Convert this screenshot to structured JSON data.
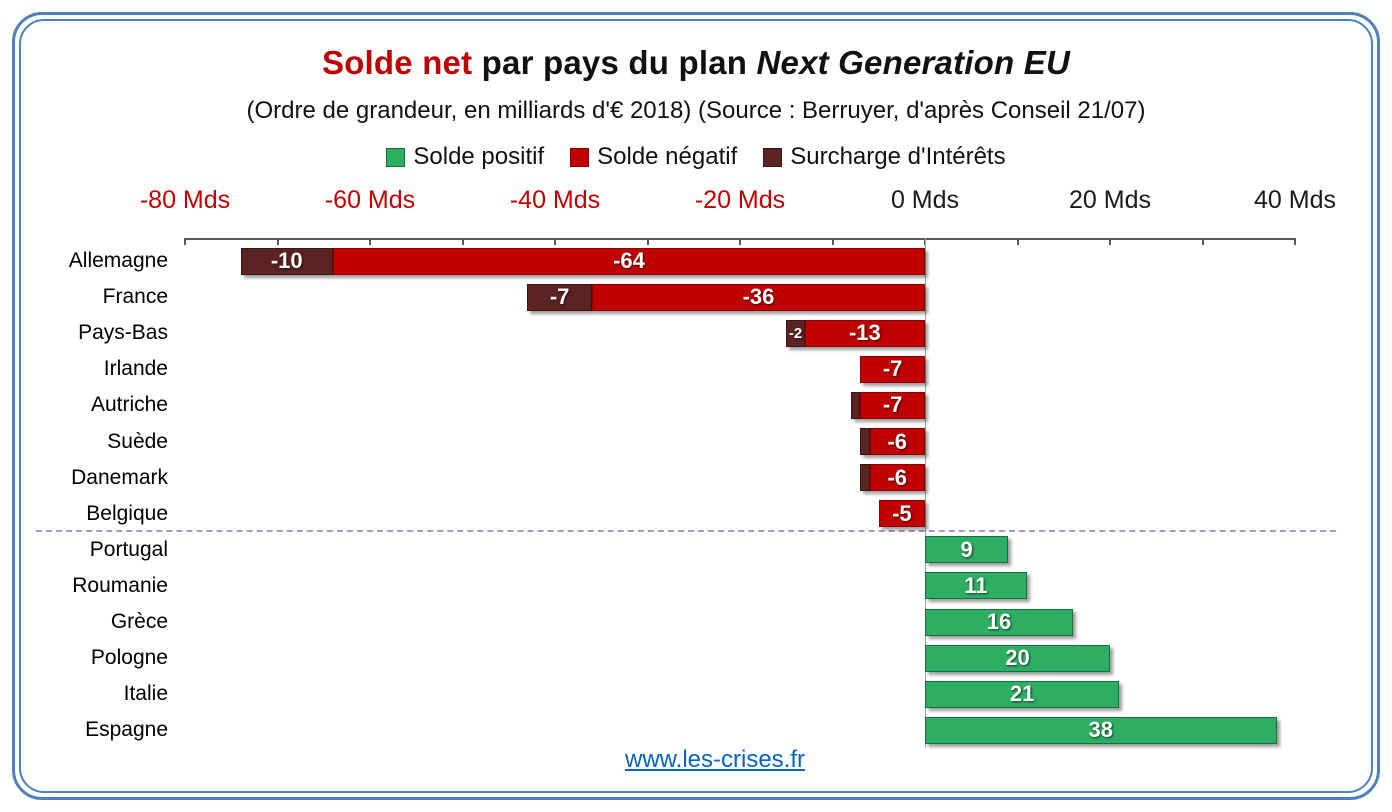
{
  "title": {
    "accent": "Solde net",
    "rest": " par pays du plan ",
    "italic": "Next Generation EU"
  },
  "subtitle": "(Ordre de grandeur, en milliards d'€ 2018) (Source : Berruyer, d'après Conseil 21/07)",
  "legend": {
    "items": [
      {
        "series": "positive",
        "label": "Solde positif"
      },
      {
        "series": "negative",
        "label": "Solde négatif"
      },
      {
        "series": "interest",
        "label": "Surcharge d'Intérêts"
      }
    ]
  },
  "footer": {
    "link_text": "www.les-crises.fr"
  },
  "colors": {
    "frame_border": "#4E80BC",
    "title_accent": "#C00000",
    "link": "#0563C1",
    "negative_axis_label": "#C00000",
    "positive_axis_label": "#000000"
  },
  "chart_data": {
    "type": "bar",
    "orientation": "horizontal",
    "title": "Solde net par pays du plan Next Generation EU",
    "subtitle": "(Ordre de grandeur, en milliards d'€ 2018) (Source : Berruyer, d'après Conseil 21/07)",
    "unit": "milliards d'€ 2018 (Mds)",
    "categories": [
      "Allemagne",
      "France",
      "Pays-Bas",
      "Irlande",
      "Autriche",
      "Suède",
      "Danemark",
      "Belgique",
      "Portugal",
      "Roumanie",
      "Grèce",
      "Pologne",
      "Italie",
      "Espagne"
    ],
    "series": [
      {
        "key": "interest",
        "name": "Surcharge d'Intérêts",
        "values": [
          -10,
          -7,
          -2,
          0,
          -1,
          -1,
          -1,
          0,
          0,
          0,
          0,
          0,
          0,
          0
        ],
        "labels": [
          "-10",
          "-7",
          "-2",
          "",
          "",
          "",
          "",
          "",
          "",
          "",
          "",
          "",
          "",
          ""
        ]
      },
      {
        "key": "negative",
        "name": "Solde négatif",
        "values": [
          -64,
          -36,
          -13,
          -7,
          -7,
          -6,
          -6,
          -5,
          0,
          0,
          0,
          0,
          0,
          0
        ],
        "labels": [
          "-64",
          "-36",
          "-13",
          "-7",
          "-7",
          "-6",
          "-6",
          "-5",
          "",
          "",
          "",
          "",
          "",
          ""
        ]
      },
      {
        "key": "positive",
        "name": "Solde positif",
        "values": [
          0,
          0,
          0,
          0,
          0,
          0,
          0,
          0,
          9,
          11,
          16,
          20,
          21,
          38
        ],
        "labels": [
          "",
          "",
          "",
          "",
          "",
          "",
          "",
          "",
          "9",
          "11",
          "16",
          "20",
          "21",
          "38"
        ]
      }
    ],
    "series_styles": {
      "interest": {
        "fill": "#5B2423",
        "border": "#3A1514"
      },
      "negative": {
        "fill": "#C00000",
        "border": "#8B0000"
      },
      "positive": {
        "fill": "#2EAE63",
        "border": "#14713C"
      }
    },
    "axis": {
      "min": -80,
      "max": 40,
      "minor_step": 10,
      "tick_labels": [
        {
          "value": -80,
          "label": "-80 Mds",
          "color": "#C00000"
        },
        {
          "value": -60,
          "label": "-60 Mds",
          "color": "#C00000"
        },
        {
          "value": -40,
          "label": "-40 Mds",
          "color": "#C00000"
        },
        {
          "value": -20,
          "label": "-20 Mds",
          "color": "#C00000"
        },
        {
          "value": 0,
          "label": "0 Mds",
          "color": "#1a1a1a"
        },
        {
          "value": 20,
          "label": "20 Mds",
          "color": "#1a1a1a"
        },
        {
          "value": 40,
          "label": "40 Mds",
          "color": "#1a1a1a"
        }
      ]
    },
    "separator_after_category": "Belgique",
    "stacking": "negative segments stack leftward from zero; surcharge segment is leftmost",
    "grid": "zero gridline only",
    "legend_position": "top"
  }
}
